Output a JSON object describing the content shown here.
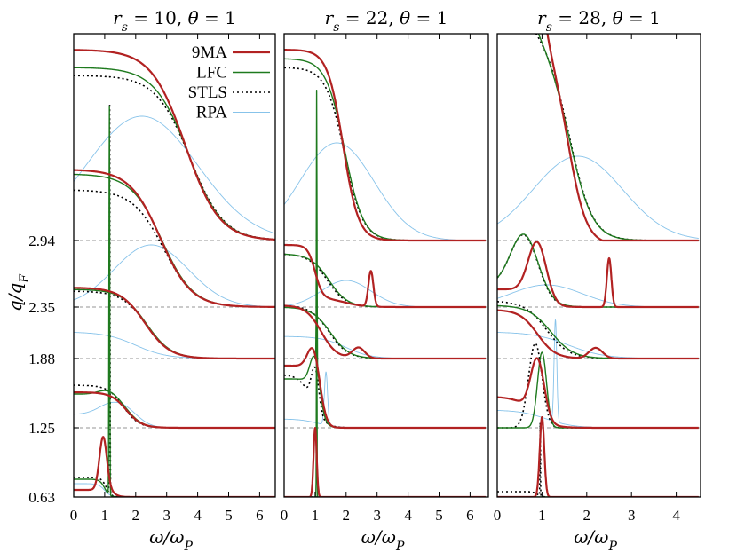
{
  "chart_data": {
    "type": "line",
    "ylabel": "q/q_F",
    "xlabel": "ω/ω_P",
    "y_ticks": [
      "0.63",
      "1.25",
      "1.88",
      "2.35",
      "2.94"
    ],
    "y_tick_values": [
      0.63,
      1.25,
      1.88,
      2.35,
      2.94
    ],
    "legend": [
      {
        "name": "9MA",
        "color": "#b22222",
        "style": "solid"
      },
      {
        "name": "LFC",
        "color": "#1e7a1e",
        "style": "solid"
      },
      {
        "name": "STLS",
        "color": "#000000",
        "style": "dotted"
      },
      {
        "name": "RPA",
        "color": "#87c3ea",
        "style": "solid"
      }
    ],
    "panels": [
      {
        "title": "r_s = 10, θ = 1",
        "rs": "10",
        "theta": "1",
        "xlim": [
          0,
          6.5
        ],
        "x_ticks": [
          "0",
          "1",
          "2",
          "3",
          "4",
          "5",
          "6"
        ]
      },
      {
        "title": "r_s = 22, θ = 1",
        "rs": "22",
        "theta": "1",
        "xlim": [
          0,
          6.5
        ],
        "x_ticks": [
          "0",
          "1",
          "2",
          "3",
          "4",
          "5",
          "6"
        ]
      },
      {
        "title": "r_s = 28, θ = 1",
        "rs": "28",
        "theta": "1",
        "xlim": [
          0,
          4.5
        ],
        "x_ticks": [
          "0",
          "1",
          "2",
          "3",
          "4"
        ]
      }
    ]
  }
}
